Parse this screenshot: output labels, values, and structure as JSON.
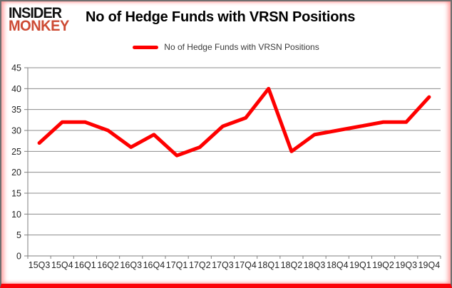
{
  "logo": {
    "line1": "INSIDER",
    "line2": "MONKEY",
    "accent_color": "#cd4a33"
  },
  "header": {
    "title": "No of Hedge Funds with VRSN Positions"
  },
  "legend": {
    "label": "No of Hedge Funds with VRSN Positions",
    "swatch_color": "#fe0000"
  },
  "chart_data": {
    "type": "line",
    "title": "No of Hedge Funds with VRSN Positions",
    "categories": [
      "15Q3",
      "15Q4",
      "16Q1",
      "16Q2",
      "16Q3",
      "16Q4",
      "17Q1",
      "17Q2",
      "17Q3",
      "17Q4",
      "18Q1",
      "18Q2",
      "18Q3",
      "18Q4",
      "19Q1",
      "19Q2",
      "19Q3",
      "19Q4"
    ],
    "series": [
      {
        "name": "No of Hedge Funds with VRSN Positions",
        "values": [
          27,
          32,
          32,
          30,
          26,
          29,
          24,
          26,
          31,
          33,
          40,
          25,
          29,
          30,
          31,
          32,
          32,
          38
        ],
        "color": "#fe0000"
      }
    ],
    "ylim": [
      0,
      45
    ],
    "ytick_interval": 5,
    "grid": "horizontal",
    "legend_position": "top-center",
    "xlabel": "",
    "ylabel": "",
    "grid_color": "#8c8c8c",
    "axis_color": "#7f7f7f",
    "label_color": "#262626"
  }
}
